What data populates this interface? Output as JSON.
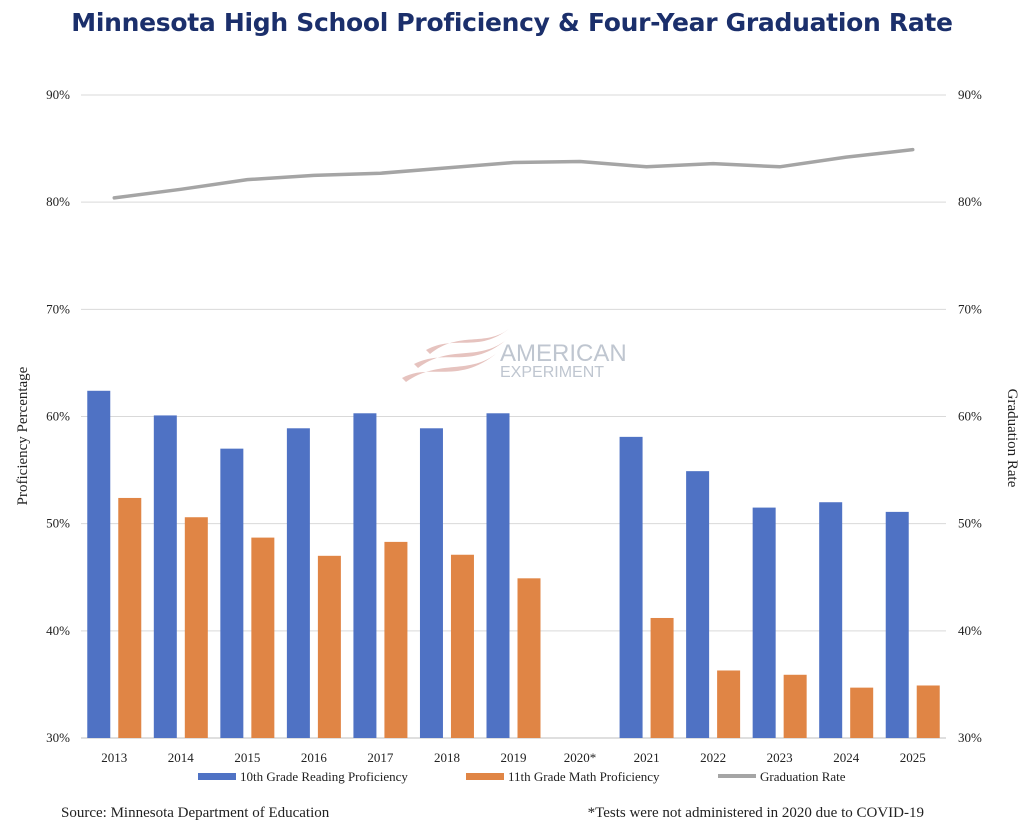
{
  "chart_data": {
    "type": "bar",
    "title": "Minnesota High School Proficiency & Four-Year Graduation Rate",
    "categories": [
      "2013",
      "2014",
      "2015",
      "2016",
      "2017",
      "2018",
      "2019",
      "2020*",
      "2021",
      "2022",
      "2023",
      "2024",
      "2025"
    ],
    "series": [
      {
        "name": "10th Grade Reading Proficiency",
        "type": "bar",
        "color": "#4f72c4",
        "values": [
          62.4,
          60.1,
          57.0,
          58.9,
          60.3,
          58.9,
          60.3,
          null,
          58.1,
          54.9,
          51.5,
          52.0,
          51.1
        ]
      },
      {
        "name": "11th Grade Math Proficiency",
        "type": "bar",
        "color": "#e08545",
        "values": [
          52.4,
          50.6,
          48.7,
          47.0,
          48.3,
          47.1,
          44.9,
          null,
          41.2,
          36.3,
          35.9,
          34.7,
          34.9
        ]
      },
      {
        "name": "Graduation Rate",
        "type": "line",
        "color": "#a5a5a5",
        "axis": "right",
        "values": [
          80.4,
          81.2,
          82.1,
          82.5,
          82.7,
          83.2,
          83.7,
          83.8,
          83.3,
          83.6,
          83.3,
          84.2,
          84.9
        ]
      }
    ],
    "ylabel": "Proficiency Percentage",
    "ylabel_right": "Graduation Rate",
    "ylim": [
      30,
      90
    ],
    "yticks": [
      "30%",
      "40%",
      "50%",
      "60%",
      "70%",
      "80%",
      "90%"
    ],
    "legend_position": "bottom",
    "grid": true
  },
  "watermark": {
    "line1": "AMERICAN",
    "line2": "EXPERIMENT"
  },
  "footer": {
    "source": "Source: Minnesota Department of Education",
    "note": "*Tests were not administered in 2020 due to COVID-19"
  },
  "colors": {
    "title": "#1b2f6b",
    "grid": "#d9d9d9"
  }
}
